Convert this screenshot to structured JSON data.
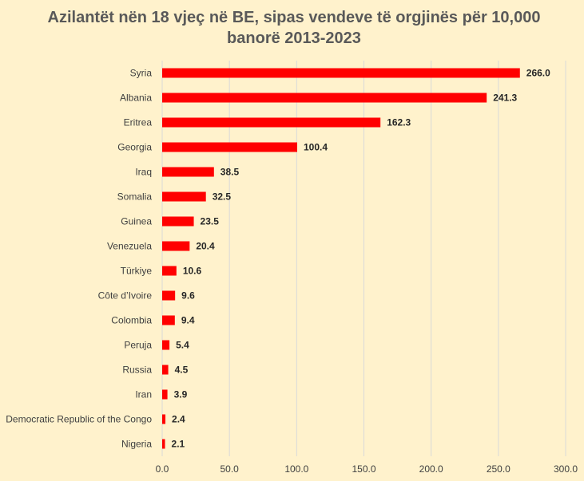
{
  "chart_data": {
    "type": "bar",
    "orientation": "horizontal",
    "title_line1": "Azilantët nën 18 vjeç në BE, sipas vendeve të orgjinës për 10,000",
    "title_line2": "banorë 2013-2023",
    "categories": [
      "Syria",
      "Albania",
      "Eritrea",
      "Georgia",
      "Iraq",
      "Somalia",
      "Guinea",
      "Venezuela",
      "Türkiye",
      "Côte d’Ivoire",
      "Colombia",
      "Peruja",
      "Russia",
      "Iran",
      "Democratic Republic of the Congo",
      "Nigeria"
    ],
    "values": [
      266.0,
      241.3,
      162.3,
      100.4,
      38.5,
      32.5,
      23.5,
      20.4,
      10.6,
      9.6,
      9.4,
      5.4,
      4.5,
      3.9,
      2.4,
      2.1
    ],
    "value_labels": [
      "266.0",
      "241.3",
      "162.3",
      "100.4",
      "38.5",
      "32.5",
      "23.5",
      "20.4",
      "10.6",
      "9.6",
      "9.4",
      "5.4",
      "4.5",
      "3.9",
      "2.4",
      "2.1"
    ],
    "xlim": [
      0,
      300
    ],
    "x_ticks": [
      0,
      50,
      100,
      150,
      200,
      250,
      300
    ],
    "x_tick_labels": [
      "0.0",
      "50.0",
      "100.0",
      "150.0",
      "200.0",
      "250.0",
      "300.0"
    ],
    "xlabel": "",
    "ylabel": "",
    "grid": "vertical",
    "legend": "none",
    "colors": {
      "bar": "#FF0000",
      "background": "#FFF2CC",
      "grid": "#D9D9D9",
      "title": "#595959"
    }
  }
}
